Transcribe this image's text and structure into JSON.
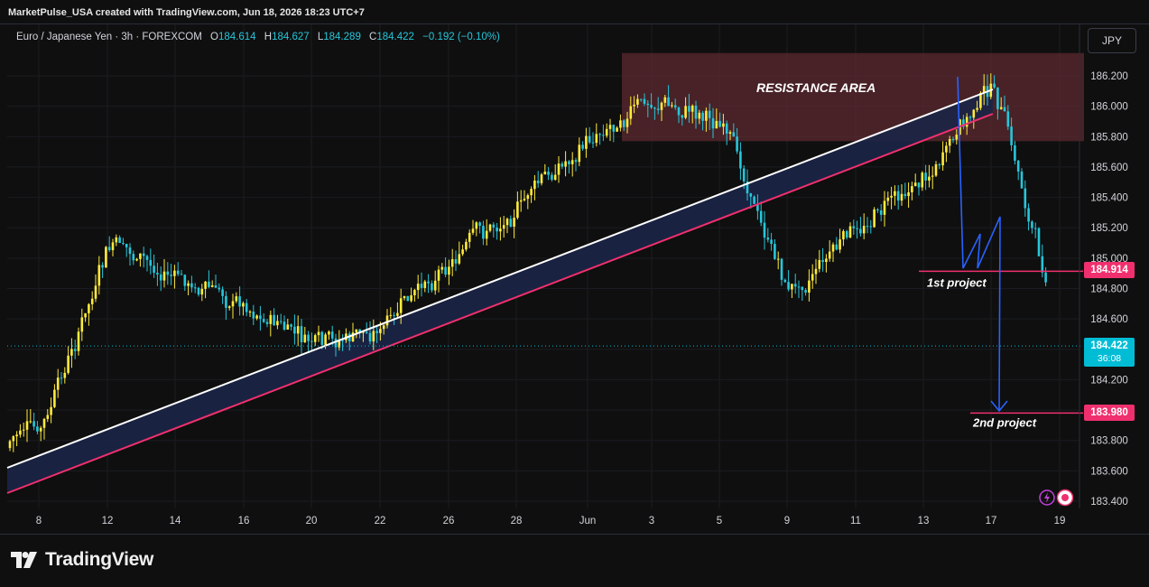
{
  "header": {
    "credit": "MarketPulse_USA created with TradingView.com, Jun 18, 2026 18:23 UTC+7"
  },
  "legend": {
    "symbol": "Euro / Japanese Yen · 3h · FOREXCOM",
    "open_label": "O",
    "open": "184.614",
    "high_label": "H",
    "high": "184.627",
    "low_label": "L",
    "low": "184.289",
    "close_label": "C",
    "close": "184.422",
    "change": "−0.192 (−0.10%)"
  },
  "currency_button": "JPY",
  "footer": {
    "brand": "TradingView",
    "logo_icon": "tradingview-logo-icon"
  },
  "price_tags": {
    "first_project": "184.914",
    "second_project": "183.980",
    "last_price": "184.422",
    "countdown": "36:08"
  },
  "colors": {
    "bull_candle": "#ffeb3b",
    "bear_candle": "#26c6da",
    "resistance_fill": "#5c2a30",
    "channel_fill": "#1c2547",
    "upper_line": "#ffffff",
    "lower_line": "#f0306e",
    "projection_line": "#2962ff",
    "tag_red": "#f0306e",
    "tag_cyan": "#00bcd4"
  },
  "chart_data": {
    "type": "candlestick",
    "symbol": "EURJPY",
    "timeframe": "3h",
    "ylim": [
      183.35,
      186.42
    ],
    "y_ticks": [
      "186.200",
      "186.000",
      "185.800",
      "185.600",
      "185.400",
      "185.200",
      "185.000",
      "184.800",
      "184.600",
      "184.400",
      "184.200",
      "184.000",
      "183.800",
      "183.600",
      "183.400"
    ],
    "x_ticks": [
      "8",
      "12",
      "14",
      "16",
      "20",
      "22",
      "26",
      "28",
      "Jun",
      "3",
      "5",
      "9",
      "11",
      "13",
      "17",
      "19"
    ],
    "annotations": [
      {
        "text": "RESISTANCE AREA",
        "type": "zone",
        "price_from": 185.77,
        "price_to": 186.35
      },
      {
        "text": "1st project",
        "type": "level",
        "price": 184.914
      },
      {
        "text": "2nd project",
        "type": "level",
        "price": 183.98
      }
    ],
    "last_price": 184.422,
    "session_close_points": [
      {
        "x": "8",
        "close": 183.85
      },
      {
        "x": "12",
        "close": 185.1
      },
      {
        "x": "14",
        "close": 184.85
      },
      {
        "x": "16",
        "close": 184.7
      },
      {
        "x": "20",
        "close": 184.4
      },
      {
        "x": "22",
        "close": 184.55
      },
      {
        "x": "26",
        "close": 185.0
      },
      {
        "x": "28",
        "close": 185.35
      },
      {
        "x": "Jun",
        "close": 185.8
      },
      {
        "x": "3",
        "close": 186.05
      },
      {
        "x": "5",
        "close": 185.9
      },
      {
        "x": "9",
        "close": 184.75
      },
      {
        "x": "11",
        "close": 185.2
      },
      {
        "x": "13",
        "close": 185.55
      },
      {
        "x": "17",
        "close": 186.15
      },
      {
        "x": "19",
        "close": 184.42
      }
    ]
  }
}
